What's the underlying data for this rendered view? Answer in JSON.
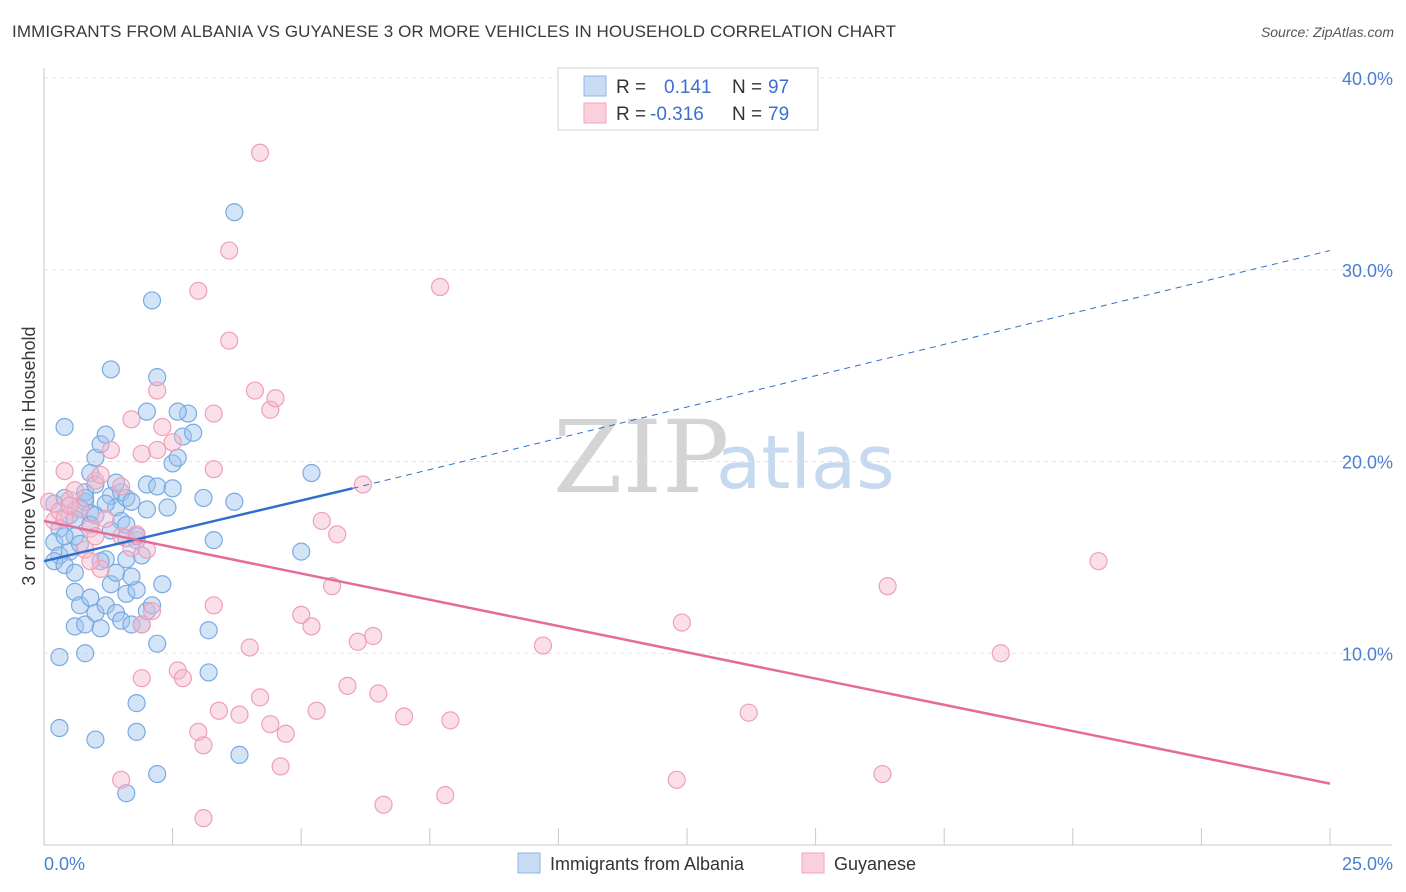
{
  "chart_data": {
    "type": "scatter",
    "title": "IMMIGRANTS FROM ALBANIA VS GUYANESE 3 OR MORE VEHICLES IN HOUSEHOLD CORRELATION CHART",
    "source": "Source: ZipAtlas.com",
    "xlabel": "",
    "ylabel": "3 or more Vehicles in Household",
    "xlim": [
      0,
      25
    ],
    "ylim": [
      0,
      40
    ],
    "x_tick_labels": [
      "0.0%",
      "25.0%"
    ],
    "y_ticks": [
      10,
      20,
      30,
      40
    ],
    "y_tick_labels": [
      "10.0%",
      "20.0%",
      "30.0%",
      "40.0%"
    ],
    "legend": {
      "r_label": "R =",
      "n_label": "N =",
      "rows": [
        {
          "r": "0.141",
          "n": "97"
        },
        {
          "r": "-0.316",
          "n": "79"
        }
      ]
    },
    "watermark": {
      "zip": "ZIP",
      "atlas": "atlas"
    },
    "series": [
      {
        "name": "Immigrants from Albania",
        "color": "#9dc3ee",
        "line_color": "#2f6fcc",
        "trend": {
          "x0": 0,
          "y0": 14.8,
          "x1": 6.0,
          "y1": 18.6,
          "dash_x1": 25,
          "dash_y1": 31.0
        },
        "points": [
          [
            0.2,
            17.8
          ],
          [
            0.3,
            16.5
          ],
          [
            0.2,
            15.8
          ],
          [
            0.3,
            15.1
          ],
          [
            0.2,
            14.8
          ],
          [
            0.4,
            18.1
          ],
          [
            0.5,
            17.2
          ],
          [
            0.6,
            16.1
          ],
          [
            0.5,
            15.3
          ],
          [
            0.4,
            14.6
          ],
          [
            0.7,
            17.6
          ],
          [
            0.8,
            17.9
          ],
          [
            0.9,
            17.3
          ],
          [
            0.8,
            18.4
          ],
          [
            0.9,
            19.4
          ],
          [
            1.0,
            20.2
          ],
          [
            1.1,
            20.9
          ],
          [
            1.2,
            21.4
          ],
          [
            1.3,
            18.2
          ],
          [
            1.4,
            17.6
          ],
          [
            1.5,
            18.4
          ],
          [
            1.6,
            18.1
          ],
          [
            1.7,
            17.9
          ],
          [
            1.5,
            16.9
          ],
          [
            1.6,
            16.0
          ],
          [
            1.8,
            15.9
          ],
          [
            1.9,
            15.1
          ],
          [
            2.0,
            18.8
          ],
          [
            2.2,
            18.7
          ],
          [
            2.4,
            17.6
          ],
          [
            2.5,
            19.9
          ],
          [
            2.6,
            20.2
          ],
          [
            2.7,
            21.3
          ],
          [
            2.8,
            22.5
          ],
          [
            2.9,
            21.5
          ],
          [
            3.1,
            18.1
          ],
          [
            3.3,
            15.9
          ],
          [
            3.7,
            17.9
          ],
          [
            5.0,
            15.3
          ],
          [
            5.2,
            19.4
          ],
          [
            0.4,
            21.8
          ],
          [
            1.3,
            24.8
          ],
          [
            2.2,
            24.4
          ],
          [
            2.0,
            22.6
          ],
          [
            2.6,
            22.6
          ],
          [
            2.1,
            28.4
          ],
          [
            3.7,
            33.0
          ],
          [
            0.6,
            13.2
          ],
          [
            0.7,
            12.5
          ],
          [
            0.6,
            11.4
          ],
          [
            0.8,
            11.5
          ],
          [
            0.9,
            12.9
          ],
          [
            1.0,
            12.1
          ],
          [
            1.1,
            11.3
          ],
          [
            1.2,
            12.5
          ],
          [
            1.3,
            13.6
          ],
          [
            1.4,
            12.1
          ],
          [
            1.5,
            11.7
          ],
          [
            1.6,
            13.1
          ],
          [
            1.7,
            11.5
          ],
          [
            1.8,
            13.3
          ],
          [
            1.9,
            11.5
          ],
          [
            2.0,
            12.2
          ],
          [
            2.1,
            12.5
          ],
          [
            2.3,
            13.6
          ],
          [
            2.2,
            10.5
          ],
          [
            0.3,
            9.8
          ],
          [
            0.8,
            10.0
          ],
          [
            1.2,
            14.9
          ],
          [
            1.4,
            14.2
          ],
          [
            1.6,
            14.9
          ],
          [
            3.2,
            11.2
          ],
          [
            3.2,
            9.0
          ],
          [
            0.3,
            6.1
          ],
          [
            1.0,
            5.5
          ],
          [
            1.8,
            5.9
          ],
          [
            1.8,
            7.4
          ],
          [
            2.2,
            3.7
          ],
          [
            3.8,
            4.7
          ],
          [
            1.6,
            2.7
          ],
          [
            0.6,
            14.2
          ],
          [
            0.7,
            15.7
          ],
          [
            1.1,
            14.8
          ],
          [
            0.9,
            16.7
          ],
          [
            1.0,
            17.2
          ],
          [
            1.6,
            16.7
          ],
          [
            1.3,
            16.4
          ],
          [
            1.8,
            16.1
          ],
          [
            0.4,
            16.1
          ],
          [
            0.6,
            17.0
          ],
          [
            0.8,
            18.1
          ],
          [
            1.0,
            18.8
          ],
          [
            1.4,
            18.9
          ],
          [
            1.2,
            17.8
          ],
          [
            2.0,
            17.5
          ],
          [
            1.7,
            14.0
          ],
          [
            2.5,
            18.6
          ]
        ]
      },
      {
        "name": "Guyanese",
        "color": "#f6b8cb",
        "line_color": "#e36c98",
        "trend": {
          "x0": 0,
          "y0": 16.9,
          "x1": 25,
          "y1": 3.2
        },
        "points": [
          [
            0.1,
            17.9
          ],
          [
            0.2,
            16.9
          ],
          [
            0.3,
            17.4
          ],
          [
            0.4,
            17.0
          ],
          [
            0.5,
            18.0
          ],
          [
            0.7,
            17.5
          ],
          [
            0.8,
            15.4
          ],
          [
            0.9,
            16.5
          ],
          [
            1.0,
            19.0
          ],
          [
            1.1,
            19.3
          ],
          [
            1.3,
            20.6
          ],
          [
            1.5,
            16.1
          ],
          [
            1.7,
            15.5
          ],
          [
            1.8,
            16.2
          ],
          [
            1.7,
            22.2
          ],
          [
            2.2,
            20.6
          ],
          [
            2.5,
            21.0
          ],
          [
            2.3,
            21.8
          ],
          [
            2.2,
            23.7
          ],
          [
            3.3,
            22.5
          ],
          [
            3.3,
            19.6
          ],
          [
            4.1,
            23.7
          ],
          [
            4.4,
            22.7
          ],
          [
            4.5,
            23.3
          ],
          [
            3.6,
            26.3
          ],
          [
            3.0,
            28.9
          ],
          [
            3.6,
            31.0
          ],
          [
            4.2,
            36.1
          ],
          [
            7.7,
            29.1
          ],
          [
            5.4,
            16.9
          ],
          [
            5.7,
            16.2
          ],
          [
            6.2,
            18.8
          ],
          [
            5.0,
            12.0
          ],
          [
            5.6,
            13.5
          ],
          [
            5.2,
            11.4
          ],
          [
            6.1,
            10.6
          ],
          [
            6.4,
            10.9
          ],
          [
            3.3,
            12.5
          ],
          [
            4.0,
            10.3
          ],
          [
            2.6,
            9.1
          ],
          [
            2.7,
            8.7
          ],
          [
            1.9,
            8.7
          ],
          [
            3.4,
            7.0
          ],
          [
            3.8,
            6.8
          ],
          [
            4.2,
            7.7
          ],
          [
            4.4,
            6.3
          ],
          [
            4.7,
            5.8
          ],
          [
            5.3,
            7.0
          ],
          [
            5.9,
            8.3
          ],
          [
            6.5,
            7.9
          ],
          [
            7.0,
            6.7
          ],
          [
            7.9,
            6.5
          ],
          [
            3.0,
            5.9
          ],
          [
            3.1,
            5.2
          ],
          [
            4.6,
            4.1
          ],
          [
            1.5,
            3.4
          ],
          [
            6.6,
            2.1
          ],
          [
            7.8,
            2.6
          ],
          [
            3.1,
            1.4
          ],
          [
            9.7,
            10.4
          ],
          [
            12.4,
            11.6
          ],
          [
            13.7,
            6.9
          ],
          [
            16.4,
            13.5
          ],
          [
            18.6,
            10.0
          ],
          [
            20.5,
            14.8
          ],
          [
            12.3,
            3.4
          ],
          [
            16.3,
            3.7
          ],
          [
            0.4,
            19.5
          ],
          [
            0.6,
            18.5
          ],
          [
            1.2,
            17.0
          ],
          [
            1.0,
            16.1
          ],
          [
            0.5,
            17.7
          ],
          [
            1.9,
            20.4
          ],
          [
            2.0,
            15.4
          ],
          [
            1.1,
            14.4
          ],
          [
            0.9,
            14.8
          ],
          [
            1.5,
            18.7
          ],
          [
            2.1,
            12.2
          ],
          [
            1.9,
            11.5
          ]
        ]
      }
    ]
  }
}
